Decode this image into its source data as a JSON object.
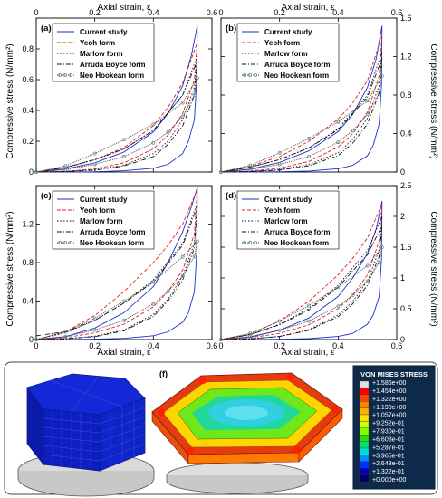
{
  "figure": {
    "top_axis_label": "Axial strain, ε",
    "bottom_axis_label": "Axial strain, ε",
    "left_axis_label": "Compressive stress (N/mm²)",
    "right_axis_label": "Compressive stress (N/mm²)",
    "colorbar": {
      "title": "VON MISES STRESS",
      "labels": [
        "+1.586e+00",
        "+1.454e+00",
        "+1.322e+00",
        "+1.190e+00",
        "+1.057e+00",
        "+9.252e-01",
        "+7.930e-01",
        "+6.608e-01",
        "+5.287e-01",
        "+3.965e-01",
        "+2.643e-01",
        "+1.322e-01",
        "+0.000e+00"
      ],
      "colors": [
        "#e0e0e0",
        "#ff0000",
        "#ff4400",
        "#ff8000",
        "#ffb000",
        "#ffe000",
        "#d0ff00",
        "#80ff00",
        "#30e000",
        "#00e070",
        "#00e0d0",
        "#0090ff",
        "#0030ff",
        "#0000c0",
        "#000060"
      ]
    },
    "images": {
      "e_label": "(e)",
      "f_label": "(f)"
    }
  },
  "legend_styles": {
    "Current study": {
      "color": "#1a2fd6",
      "dash": ""
    },
    "Yeoh form": {
      "color": "#e02020",
      "dash": "4,2"
    },
    "Marlow form": {
      "color": "#111111",
      "dash": "1.5,2"
    },
    "Arruda Boyce form": {
      "color": "#111111",
      "dash": "5,2,1,2"
    },
    "Neo Hookean form": {
      "color": "#444444",
      "dash": "1,1",
      "marker": "circle"
    }
  },
  "chart_data": [
    {
      "panel": "(a)",
      "type": "line",
      "xlabel": "Axial strain, ε",
      "ylabel": "Compressive stress (N/mm²)",
      "xlabel_position": "top",
      "ylabel_side": "left",
      "xlim": [
        0,
        0.6
      ],
      "ylim": [
        0,
        1.0
      ],
      "xticks": [
        0,
        0.2,
        0.4,
        0.6
      ],
      "yticks": [
        0,
        0.2,
        0.4,
        0.6,
        0.8
      ],
      "legend": [
        "Current study",
        "Yeoh form",
        "Marlow form",
        "Arruda Boyce form",
        "Neo Hookean form"
      ],
      "series": [
        {
          "name": "Current study",
          "x": [
            0,
            0.1,
            0.2,
            0.3,
            0.4,
            0.45,
            0.5,
            0.53,
            0.55,
            0.548,
            0.54,
            0.52,
            0.5,
            0.45,
            0.4,
            0.3,
            0.2,
            0.1,
            0
          ],
          "y": [
            0,
            0.02,
            0.06,
            0.13,
            0.26,
            0.38,
            0.56,
            0.76,
            0.95,
            0.6,
            0.34,
            0.2,
            0.12,
            0.05,
            0.025,
            0.008,
            0.002,
            0,
            0
          ]
        },
        {
          "name": "Yeoh form",
          "x": [
            0,
            0.1,
            0.2,
            0.3,
            0.4,
            0.45,
            0.5,
            0.55,
            0.54,
            0.5,
            0.45,
            0.4,
            0.3,
            0.2,
            0.1,
            0
          ],
          "y": [
            0,
            0.03,
            0.08,
            0.16,
            0.3,
            0.42,
            0.58,
            0.84,
            0.6,
            0.38,
            0.24,
            0.15,
            0.06,
            0.02,
            0.005,
            0
          ]
        },
        {
          "name": "Marlow form",
          "x": [
            0,
            0.1,
            0.2,
            0.3,
            0.4,
            0.5,
            0.55,
            0.54,
            0.5,
            0.45,
            0.4,
            0.3,
            0.2,
            0.1,
            0
          ],
          "y": [
            0,
            0.03,
            0.08,
            0.15,
            0.27,
            0.5,
            0.75,
            0.55,
            0.34,
            0.2,
            0.12,
            0.045,
            0.015,
            0.004,
            0
          ]
        },
        {
          "name": "Arruda Boyce form",
          "x": [
            0,
            0.1,
            0.2,
            0.3,
            0.4,
            0.5,
            0.55,
            0.54,
            0.5,
            0.45,
            0.4,
            0.3,
            0.2,
            0.1,
            0
          ],
          "y": [
            0,
            0.03,
            0.08,
            0.15,
            0.27,
            0.5,
            0.72,
            0.5,
            0.3,
            0.18,
            0.1,
            0.04,
            0.012,
            0.003,
            0
          ]
        },
        {
          "name": "Neo Hookean form",
          "x": [
            0,
            0.1,
            0.2,
            0.3,
            0.4,
            0.5,
            0.55,
            0.54,
            0.5,
            0.45,
            0.4,
            0.3,
            0.2,
            0.1,
            0
          ],
          "y": [
            0,
            0.04,
            0.12,
            0.21,
            0.31,
            0.45,
            0.61,
            0.5,
            0.36,
            0.26,
            0.19,
            0.1,
            0.05,
            0.015,
            0
          ]
        }
      ]
    },
    {
      "panel": "(b)",
      "type": "line",
      "xlabel": "Axial strain, ε",
      "ylabel": "Compressive stress (N/mm²)",
      "xlabel_position": "top",
      "ylabel_side": "right",
      "xlim": [
        0,
        0.6
      ],
      "ylim": [
        0,
        1.6
      ],
      "xticks": [
        0,
        0.2,
        0.4,
        0.6
      ],
      "yticks": [
        0,
        0.4,
        0.8,
        1.2,
        1.6
      ],
      "legend": [
        "Current study",
        "Yeoh form",
        "Marlow form",
        "Arruda Boyce form",
        "Neo Hookean form"
      ],
      "series": [
        {
          "name": "Current study",
          "x": [
            0,
            0.1,
            0.2,
            0.3,
            0.4,
            0.45,
            0.5,
            0.53,
            0.55,
            0.548,
            0.54,
            0.52,
            0.5,
            0.45,
            0.4,
            0.3,
            0.2,
            0.1,
            0
          ],
          "y": [
            0,
            0.03,
            0.1,
            0.22,
            0.42,
            0.6,
            0.88,
            1.18,
            1.52,
            0.9,
            0.5,
            0.28,
            0.17,
            0.07,
            0.035,
            0.01,
            0.003,
            0,
            0
          ]
        },
        {
          "name": "Yeoh form",
          "x": [
            0,
            0.1,
            0.2,
            0.3,
            0.4,
            0.45,
            0.5,
            0.55,
            0.54,
            0.5,
            0.45,
            0.4,
            0.3,
            0.2,
            0.1,
            0
          ],
          "y": [
            0,
            0.06,
            0.16,
            0.32,
            0.55,
            0.72,
            0.95,
            1.42,
            1.0,
            0.62,
            0.4,
            0.26,
            0.11,
            0.04,
            0.01,
            0
          ]
        },
        {
          "name": "Marlow form",
          "x": [
            0,
            0.1,
            0.2,
            0.3,
            0.4,
            0.5,
            0.55,
            0.54,
            0.5,
            0.45,
            0.4,
            0.3,
            0.2,
            0.1,
            0
          ],
          "y": [
            0,
            0.05,
            0.13,
            0.25,
            0.45,
            0.8,
            1.25,
            0.9,
            0.56,
            0.34,
            0.2,
            0.08,
            0.025,
            0.006,
            0
          ]
        },
        {
          "name": "Arruda Boyce form",
          "x": [
            0,
            0.1,
            0.2,
            0.3,
            0.4,
            0.5,
            0.55,
            0.54,
            0.5,
            0.45,
            0.4,
            0.3,
            0.2,
            0.1,
            0
          ],
          "y": [
            0,
            0.05,
            0.13,
            0.25,
            0.44,
            0.78,
            1.18,
            0.82,
            0.5,
            0.3,
            0.17,
            0.065,
            0.02,
            0.005,
            0
          ]
        },
        {
          "name": "Neo Hookean form",
          "x": [
            0,
            0.1,
            0.2,
            0.3,
            0.4,
            0.5,
            0.55,
            0.54,
            0.5,
            0.45,
            0.4,
            0.3,
            0.2,
            0.1,
            0
          ],
          "y": [
            0,
            0.07,
            0.2,
            0.35,
            0.52,
            0.74,
            1.0,
            0.82,
            0.6,
            0.43,
            0.31,
            0.16,
            0.08,
            0.025,
            0
          ]
        }
      ]
    },
    {
      "panel": "(c)",
      "type": "line",
      "xlabel": "Axial strain, ε",
      "ylabel": "Compressive stress (N/mm²)",
      "xlabel_position": "bottom",
      "ylabel_side": "left",
      "xlim": [
        0,
        0.6
      ],
      "ylim": [
        0,
        1.6
      ],
      "xticks": [
        0,
        0.2,
        0.4,
        0.6
      ],
      "yticks": [
        0,
        0.4,
        0.8,
        1.2
      ],
      "legend": [
        "Current study",
        "Yeoh form",
        "Marlow form",
        "Arruda Boyce form",
        "Neo Hookean form"
      ],
      "series": [
        {
          "name": "Current study",
          "x": [
            0,
            0.1,
            0.2,
            0.3,
            0.4,
            0.45,
            0.5,
            0.53,
            0.55,
            0.548,
            0.54,
            0.52,
            0.5,
            0.45,
            0.4,
            0.3,
            0.2,
            0.1,
            0
          ],
          "y": [
            0,
            0.03,
            0.12,
            0.28,
            0.55,
            0.8,
            1.12,
            1.38,
            1.58,
            0.9,
            0.5,
            0.28,
            0.18,
            0.08,
            0.04,
            0.012,
            0.004,
            0,
            0
          ]
        },
        {
          "name": "Yeoh form",
          "x": [
            0,
            0.1,
            0.2,
            0.3,
            0.4,
            0.45,
            0.5,
            0.55,
            0.54,
            0.5,
            0.45,
            0.4,
            0.3,
            0.2,
            0.1,
            0
          ],
          "y": [
            0,
            0.08,
            0.25,
            0.5,
            0.8,
            0.98,
            1.2,
            1.56,
            1.1,
            0.72,
            0.5,
            0.34,
            0.16,
            0.07,
            0.02,
            0
          ]
        },
        {
          "name": "Marlow form",
          "x": [
            0,
            0.1,
            0.2,
            0.3,
            0.4,
            0.5,
            0.55,
            0.54,
            0.5,
            0.45,
            0.4,
            0.3,
            0.2,
            0.1,
            0
          ],
          "y": [
            0,
            0.07,
            0.2,
            0.38,
            0.62,
            1.0,
            1.42,
            1.0,
            0.66,
            0.42,
            0.26,
            0.1,
            0.035,
            0.008,
            0
          ]
        },
        {
          "name": "Arruda Boyce form",
          "x": [
            0,
            0.1,
            0.2,
            0.3,
            0.4,
            0.5,
            0.55,
            0.54,
            0.5,
            0.45,
            0.4,
            0.3,
            0.2,
            0.1,
            0
          ],
          "y": [
            0.04,
            0.08,
            0.2,
            0.38,
            0.6,
            0.98,
            1.38,
            0.95,
            0.62,
            0.4,
            0.24,
            0.09,
            0.03,
            0.008,
            0
          ]
        },
        {
          "name": "Neo Hookean form",
          "x": [
            0,
            0.1,
            0.2,
            0.3,
            0.4,
            0.5,
            0.55,
            0.54,
            0.5,
            0.45,
            0.4,
            0.3,
            0.2,
            0.1,
            0
          ],
          "y": [
            0,
            0.08,
            0.22,
            0.4,
            0.6,
            0.86,
            1.02,
            0.86,
            0.66,
            0.5,
            0.37,
            0.2,
            0.1,
            0.03,
            0
          ]
        }
      ]
    },
    {
      "panel": "(d)",
      "type": "line",
      "xlabel": "Axial strain, ε",
      "ylabel": "Compressive stress (N/mm²)",
      "xlabel_position": "bottom",
      "ylabel_side": "right",
      "xlim": [
        0,
        0.6
      ],
      "ylim": [
        0,
        2.5
      ],
      "xticks": [
        0,
        0.2,
        0.4,
        0.6
      ],
      "yticks": [
        0,
        0.5,
        1,
        1.5,
        2,
        2.5
      ],
      "legend": [
        "Current study",
        "Yeoh form",
        "Marlow form",
        "Arruda Boyce form",
        "Neo Hookean form"
      ],
      "series": [
        {
          "name": "Current study",
          "x": [
            0,
            0.1,
            0.2,
            0.3,
            0.4,
            0.45,
            0.5,
            0.53,
            0.55,
            0.548,
            0.54,
            0.52,
            0.5,
            0.45,
            0.4,
            0.3,
            0.2,
            0.1,
            0
          ],
          "y": [
            0,
            0.04,
            0.15,
            0.35,
            0.7,
            1.0,
            1.4,
            1.8,
            2.25,
            1.3,
            0.7,
            0.4,
            0.25,
            0.1,
            0.05,
            0.015,
            0.005,
            0,
            0
          ]
        },
        {
          "name": "Yeoh form",
          "x": [
            0,
            0.1,
            0.2,
            0.3,
            0.4,
            0.45,
            0.5,
            0.55,
            0.54,
            0.5,
            0.45,
            0.4,
            0.3,
            0.2,
            0.1,
            0
          ],
          "y": [
            0,
            0.09,
            0.3,
            0.62,
            1.05,
            1.32,
            1.65,
            2.2,
            1.6,
            1.05,
            0.72,
            0.5,
            0.24,
            0.1,
            0.03,
            0
          ]
        },
        {
          "name": "Marlow form",
          "x": [
            0,
            0.1,
            0.2,
            0.3,
            0.4,
            0.5,
            0.55,
            0.54,
            0.5,
            0.45,
            0.4,
            0.3,
            0.2,
            0.1,
            0
          ],
          "y": [
            0,
            0.08,
            0.25,
            0.5,
            0.88,
            1.45,
            2.0,
            1.45,
            0.95,
            0.62,
            0.4,
            0.16,
            0.05,
            0.012,
            0
          ]
        },
        {
          "name": "Arruda Boyce form",
          "x": [
            0,
            0.1,
            0.2,
            0.3,
            0.4,
            0.5,
            0.55,
            0.54,
            0.5,
            0.45,
            0.4,
            0.3,
            0.2,
            0.1,
            0
          ],
          "y": [
            0,
            0.08,
            0.24,
            0.48,
            0.85,
            1.38,
            1.85,
            1.35,
            0.88,
            0.58,
            0.37,
            0.15,
            0.05,
            0.012,
            0
          ]
        },
        {
          "name": "Neo Hookean form",
          "x": [
            0,
            0.1,
            0.2,
            0.3,
            0.4,
            0.5,
            0.55,
            0.54,
            0.5,
            0.45,
            0.4,
            0.3,
            0.2,
            0.1,
            0
          ],
          "y": [
            0,
            0.1,
            0.3,
            0.55,
            0.85,
            1.2,
            1.5,
            1.25,
            0.95,
            0.72,
            0.54,
            0.3,
            0.15,
            0.05,
            0
          ]
        }
      ]
    }
  ]
}
